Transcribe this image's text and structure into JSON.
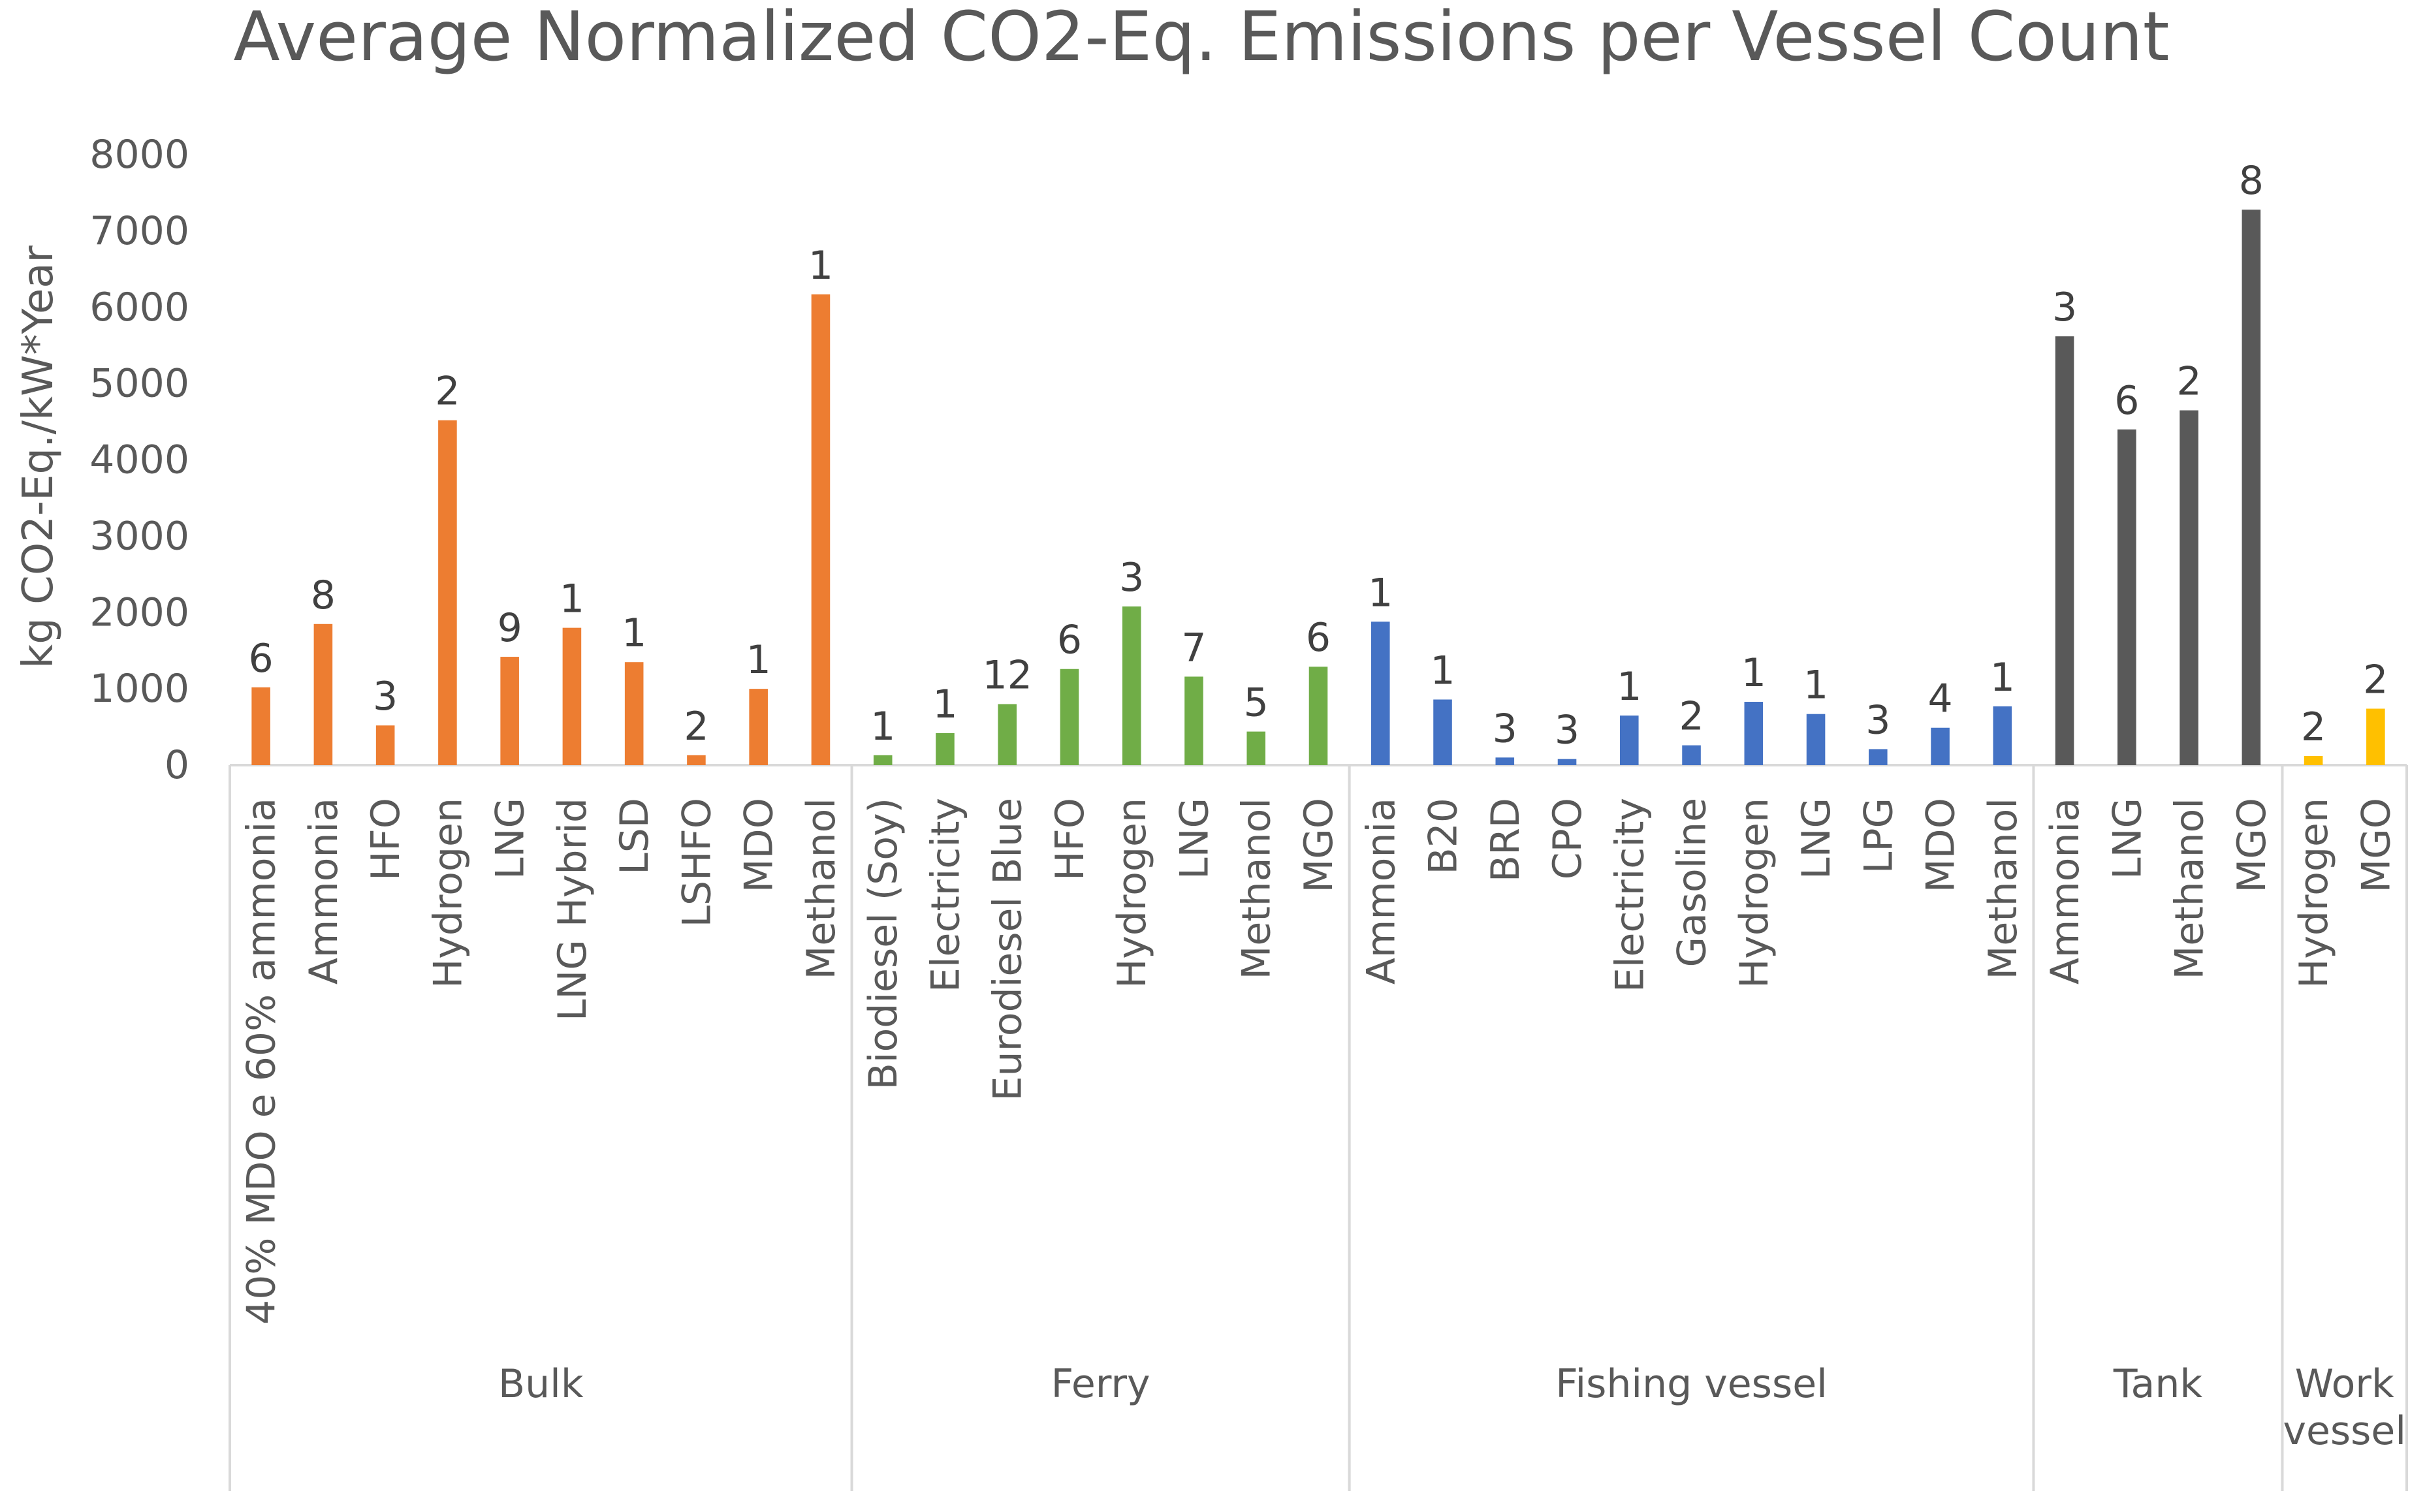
{
  "chart_data": {
    "type": "bar",
    "title": "Average Normalized CO2-Eq. Emissions per Vessel Count",
    "xlabel": "",
    "ylabel": "kg CO2-Eq./kW*Year",
    "ylim": [
      0,
      8000
    ],
    "yticks": [
      0,
      1000,
      2000,
      3000,
      4000,
      5000,
      6000,
      7000,
      8000
    ],
    "grid": false,
    "legend": "none",
    "groups": [
      {
        "name": "Bulk",
        "color": "#ED7D31",
        "categories": [
          "40% MDO e 60% ammonia",
          "Ammonia",
          "HFO",
          "Hydrogen",
          "LNG",
          "LNG Hybrid",
          "LSD",
          "LSHFO",
          "MDO",
          "Methanol"
        ],
        "values": [
          1020,
          1850,
          520,
          4520,
          1420,
          1800,
          1350,
          130,
          1000,
          6170
        ],
        "labels": [
          "6",
          "8",
          "3",
          "2",
          "9",
          "1",
          "1",
          "2",
          "1",
          "1"
        ]
      },
      {
        "name": "Ferry",
        "color": "#70AD47",
        "categories": [
          "Biodiesel (Soy)",
          "Electricity",
          "Eurodiesel Blue",
          "HFO",
          "Hydrogen",
          "LNG",
          "Methanol",
          "MGO"
        ],
        "values": [
          130,
          420,
          800,
          1260,
          2080,
          1160,
          440,
          1290
        ],
        "labels": [
          "1",
          "1",
          "12",
          "6",
          "3",
          "7",
          "5",
          "6"
        ]
      },
      {
        "name": "Fishing vessel",
        "color": "#4472C4",
        "categories": [
          "Ammonia",
          "B20",
          "BRD",
          "CPO",
          "Electricity",
          "Gasoline",
          "Hydrogen",
          "LNG",
          "LPG",
          "MDO",
          "Methanol"
        ],
        "values": [
          1880,
          860,
          100,
          80,
          650,
          260,
          830,
          670,
          210,
          490,
          770
        ],
        "labels": [
          "1",
          "1",
          "3",
          "3",
          "1",
          "2",
          "1",
          "1",
          "3",
          "4",
          "1"
        ]
      },
      {
        "name": "Tank",
        "color": "#595959",
        "categories": [
          "Ammonia",
          "LNG",
          "Methanol",
          "MGO"
        ],
        "values": [
          5620,
          4400,
          4650,
          7280
        ],
        "labels": [
          "3",
          "6",
          "2",
          "8"
        ]
      },
      {
        "name": "Work vessel",
        "color": "#FFC000",
        "categories": [
          "Hydrogen",
          "MGO"
        ],
        "values": [
          120,
          740
        ],
        "labels": [
          "2",
          "2"
        ]
      }
    ]
  }
}
